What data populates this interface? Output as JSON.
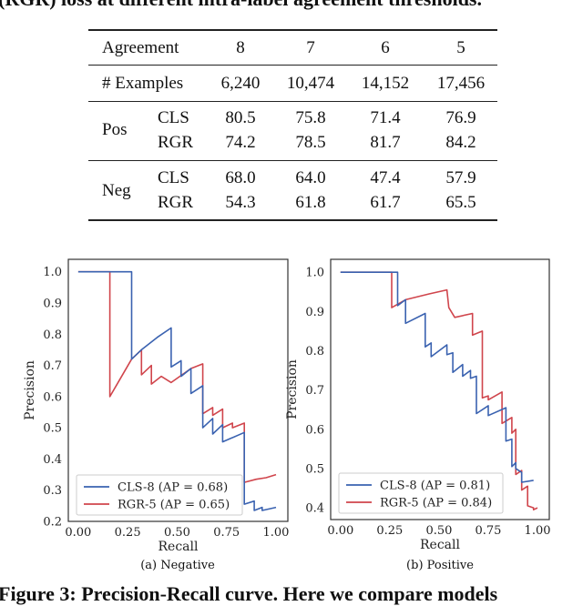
{
  "caption_top": "(RGR) loss at different intra-label agreement thresholds.",
  "table": {
    "header": [
      "Agreement",
      "8",
      "7",
      "6",
      "5"
    ],
    "examples": [
      "# Examples",
      "6,240",
      "10,474",
      "14,152",
      "17,456"
    ],
    "groups": [
      {
        "label": "Pos",
        "rows": [
          {
            "label": "CLS",
            "values": [
              "80.5",
              "75.8",
              "71.4",
              "76.9"
            ]
          },
          {
            "label": "RGR",
            "values": [
              "74.2",
              "78.5",
              "81.7",
              "84.2"
            ]
          }
        ]
      },
      {
        "label": "Neg",
        "rows": [
          {
            "label": "CLS",
            "values": [
              "68.0",
              "64.0",
              "47.4",
              "57.9"
            ]
          },
          {
            "label": "RGR",
            "values": [
              "54.3",
              "61.8",
              "61.7",
              "65.5"
            ]
          }
        ]
      }
    ]
  },
  "chart_data": [
    {
      "type": "line",
      "subcaption": "(a) Negative",
      "xlabel": "Recall",
      "ylabel": "Precision",
      "xlim": [
        -0.05,
        1.06
      ],
      "ylim": [
        0.2,
        1.04
      ],
      "xticks": [
        "0.00",
        "0.25",
        "0.50",
        "0.75",
        "1.00"
      ],
      "yticks": [
        "0.2",
        "0.3",
        "0.4",
        "0.5",
        "0.6",
        "0.7",
        "0.8",
        "0.9",
        "1.0"
      ],
      "grid": false,
      "legend_position": "bottom-left",
      "series": [
        {
          "name": "CLS-8 (AP = 0.68)",
          "color": "#3a62b0",
          "points": [
            [
              0,
              1.0
            ],
            [
              0.27,
              1.0
            ],
            [
              0.27,
              0.72
            ],
            [
              0.32,
              0.75
            ],
            [
              0.4,
              0.79
            ],
            [
              0.47,
              0.82
            ],
            [
              0.47,
              0.695
            ],
            [
              0.52,
              0.715
            ],
            [
              0.52,
              0.665
            ],
            [
              0.57,
              0.69
            ],
            [
              0.57,
              0.61
            ],
            [
              0.63,
              0.635
            ],
            [
              0.63,
              0.5
            ],
            [
              0.68,
              0.53
            ],
            [
              0.68,
              0.48
            ],
            [
              0.73,
              0.51
            ],
            [
              0.73,
              0.455
            ],
            [
              0.84,
              0.485
            ],
            [
              0.84,
              0.255
            ],
            [
              0.89,
              0.265
            ],
            [
              0.89,
              0.235
            ],
            [
              0.93,
              0.245
            ],
            [
              0.93,
              0.235
            ],
            [
              1.0,
              0.245
            ]
          ]
        },
        {
          "name": "RGR-5 (AP = 0.65)",
          "color": "#d0454c",
          "points": [
            [
              0,
              1.0
            ],
            [
              0.16,
              1.0
            ],
            [
              0.16,
              0.6
            ],
            [
              0.27,
              0.72
            ],
            [
              0.32,
              0.75
            ],
            [
              0.32,
              0.67
            ],
            [
              0.37,
              0.7
            ],
            [
              0.37,
              0.64
            ],
            [
              0.42,
              0.665
            ],
            [
              0.47,
              0.645
            ],
            [
              0.57,
              0.69
            ],
            [
              0.63,
              0.705
            ],
            [
              0.63,
              0.545
            ],
            [
              0.68,
              0.565
            ],
            [
              0.68,
              0.54
            ],
            [
              0.73,
              0.56
            ],
            [
              0.73,
              0.5
            ],
            [
              0.78,
              0.515
            ],
            [
              0.78,
              0.5
            ],
            [
              0.84,
              0.515
            ],
            [
              0.84,
              0.325
            ],
            [
              0.9,
              0.335
            ],
            [
              0.95,
              0.34
            ],
            [
              1.0,
              0.35
            ]
          ]
        }
      ]
    },
    {
      "type": "line",
      "subcaption": "(b) Positive",
      "xlabel": "Recall",
      "ylabel": "Precision",
      "xlim": [
        -0.05,
        1.06
      ],
      "ylim": [
        0.37,
        1.033
      ],
      "xticks": [
        "0.00",
        "0.25",
        "0.50",
        "0.75",
        "1.00"
      ],
      "yticks": [
        "0.4",
        "0.5",
        "0.6",
        "0.7",
        "0.8",
        "0.9",
        "1.0"
      ],
      "grid": false,
      "legend_position": "bottom-left",
      "series": [
        {
          "name": "CLS-8 (AP = 0.81)",
          "color": "#3a62b0",
          "points": [
            [
              0,
              1.0
            ],
            [
              0.29,
              1.0
            ],
            [
              0.29,
              0.915
            ],
            [
              0.33,
              0.93
            ],
            [
              0.33,
              0.87
            ],
            [
              0.43,
              0.895
            ],
            [
              0.43,
              0.81
            ],
            [
              0.46,
              0.82
            ],
            [
              0.46,
              0.785
            ],
            [
              0.54,
              0.815
            ],
            [
              0.54,
              0.79
            ],
            [
              0.57,
              0.795
            ],
            [
              0.57,
              0.745
            ],
            [
              0.62,
              0.765
            ],
            [
              0.62,
              0.735
            ],
            [
              0.66,
              0.75
            ],
            [
              0.66,
              0.73
            ],
            [
              0.69,
              0.735
            ],
            [
              0.69,
              0.64
            ],
            [
              0.75,
              0.66
            ],
            [
              0.75,
              0.635
            ],
            [
              0.84,
              0.655
            ],
            [
              0.84,
              0.57
            ],
            [
              0.87,
              0.575
            ],
            [
              0.87,
              0.505
            ],
            [
              0.89,
              0.515
            ],
            [
              0.89,
              0.5
            ],
            [
              0.92,
              0.49
            ],
            [
              0.92,
              0.465
            ],
            [
              0.98,
              0.47
            ]
          ]
        },
        {
          "name": "RGR-5 (AP = 0.84)",
          "color": "#d0454c",
          "points": [
            [
              0,
              1.0
            ],
            [
              0.26,
              1.0
            ],
            [
              0.26,
              0.91
            ],
            [
              0.33,
              0.93
            ],
            [
              0.45,
              0.945
            ],
            [
              0.54,
              0.955
            ],
            [
              0.55,
              0.91
            ],
            [
              0.58,
              0.885
            ],
            [
              0.67,
              0.895
            ],
            [
              0.67,
              0.84
            ],
            [
              0.72,
              0.85
            ],
            [
              0.72,
              0.68
            ],
            [
              0.75,
              0.685
            ],
            [
              0.75,
              0.675
            ],
            [
              0.82,
              0.695
            ],
            [
              0.82,
              0.615
            ],
            [
              0.87,
              0.63
            ],
            [
              0.87,
              0.59
            ],
            [
              0.89,
              0.6
            ],
            [
              0.89,
              0.485
            ],
            [
              0.92,
              0.495
            ],
            [
              0.92,
              0.445
            ],
            [
              0.95,
              0.455
            ],
            [
              0.95,
              0.405
            ],
            [
              0.98,
              0.4
            ],
            [
              0.98,
              0.395
            ],
            [
              1.0,
              0.4
            ]
          ]
        }
      ]
    }
  ],
  "caption_bottom": "Figure 3: Precision-Recall curve. Here we compare models"
}
